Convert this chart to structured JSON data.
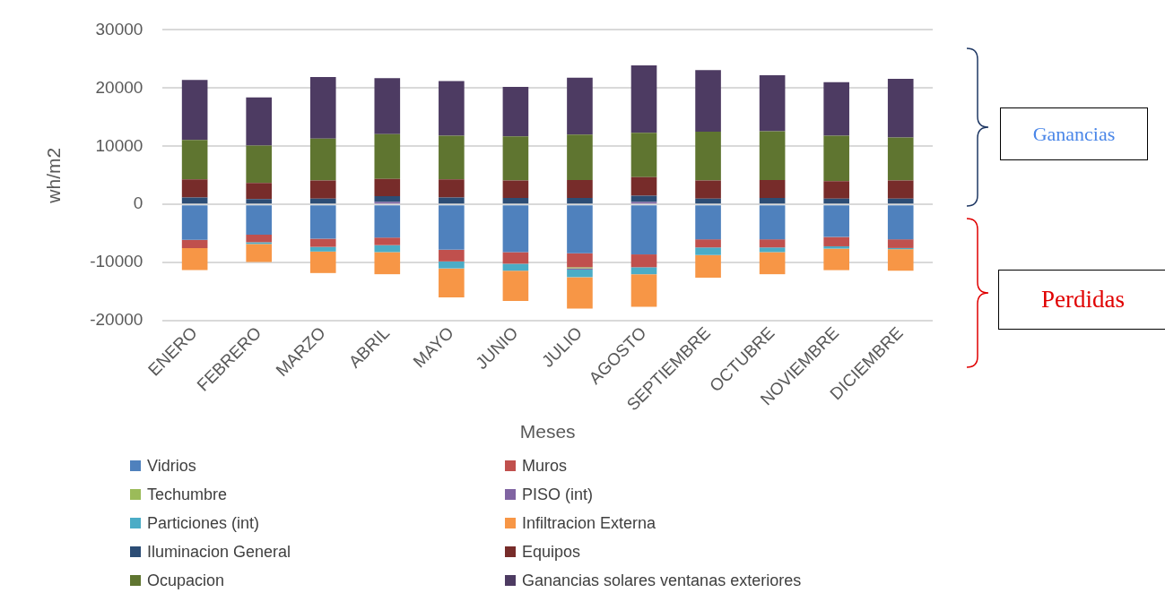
{
  "chart_data": {
    "type": "bar",
    "stacked": true,
    "xlabel": "Meses",
    "ylabel": "wh/m2",
    "categories": [
      "ENERO",
      "FEBRERO",
      "MARZO",
      "ABRIL",
      "MAYO",
      "JUNIO",
      "JULIO",
      "AGOSTO",
      "SEPTIEMBRE",
      "OCTUBRE",
      "NOVIEMBRE",
      "DICIEMBRE"
    ],
    "series": [
      {
        "name": "Vidrios",
        "color": "#4f81bd",
        "values": [
          -6100,
          -5200,
          -5900,
          -5700,
          -7800,
          -8200,
          -8400,
          -8600,
          -6000,
          -6000,
          -5600,
          -6000
        ]
      },
      {
        "name": "Muros",
        "color": "#c0504d",
        "values": [
          -1400,
          -1300,
          -1400,
          -1300,
          -2000,
          -2000,
          -2400,
          -2200,
          -1400,
          -1400,
          -1600,
          -1500
        ]
      },
      {
        "name": "Techumbre",
        "color": "#9bbb59",
        "values": [
          0,
          0,
          0,
          0,
          0,
          0,
          -200,
          0,
          0,
          0,
          0,
          0
        ]
      },
      {
        "name": "PISO (int)",
        "color": "#8064a2",
        "values": [
          0,
          0,
          0,
          400,
          0,
          0,
          -200,
          400,
          0,
          0,
          0,
          0
        ]
      },
      {
        "name": "Particiones  (int)",
        "color": "#4bacc6",
        "values": [
          0,
          -300,
          -800,
          -1200,
          -1200,
          -1200,
          -1300,
          -1200,
          -1300,
          -800,
          -400,
          -200
        ]
      },
      {
        "name": "Infiltracion Externa",
        "color": "#f79646",
        "values": [
          -3800,
          -3100,
          -3700,
          -3800,
          -5000,
          -5200,
          -5400,
          -5600,
          -3900,
          -3800,
          -3700,
          -3700
        ]
      },
      {
        "name": "Iluminacion General",
        "color": "#2c4d75",
        "values": [
          1200,
          900,
          1000,
          1000,
          1200,
          1100,
          1100,
          1100,
          1000,
          1100,
          1000,
          1000
        ]
      },
      {
        "name": "Equipos",
        "color": "#772c2a",
        "values": [
          3100,
          2800,
          3100,
          3000,
          3100,
          3000,
          3100,
          3200,
          3100,
          3100,
          3000,
          3100
        ]
      },
      {
        "name": "Ocupacion",
        "color": "#5f7530",
        "values": [
          6800,
          6400,
          7200,
          7700,
          7500,
          7600,
          7800,
          7600,
          8400,
          8400,
          7800,
          7400
        ]
      },
      {
        "name": "Ganancias solares ventanas exteriores",
        "color": "#4d3b62",
        "values": [
          10300,
          8300,
          10600,
          9600,
          9400,
          8500,
          9800,
          11600,
          10600,
          9600,
          9200,
          10100
        ]
      }
    ],
    "ylim": [
      -20000,
      30000
    ],
    "yticks": [
      -20000,
      -10000,
      0,
      10000,
      20000,
      30000
    ],
    "grid": "y",
    "legend": "bottom",
    "annotations": [
      "Ganancias",
      "Perdidas"
    ]
  }
}
